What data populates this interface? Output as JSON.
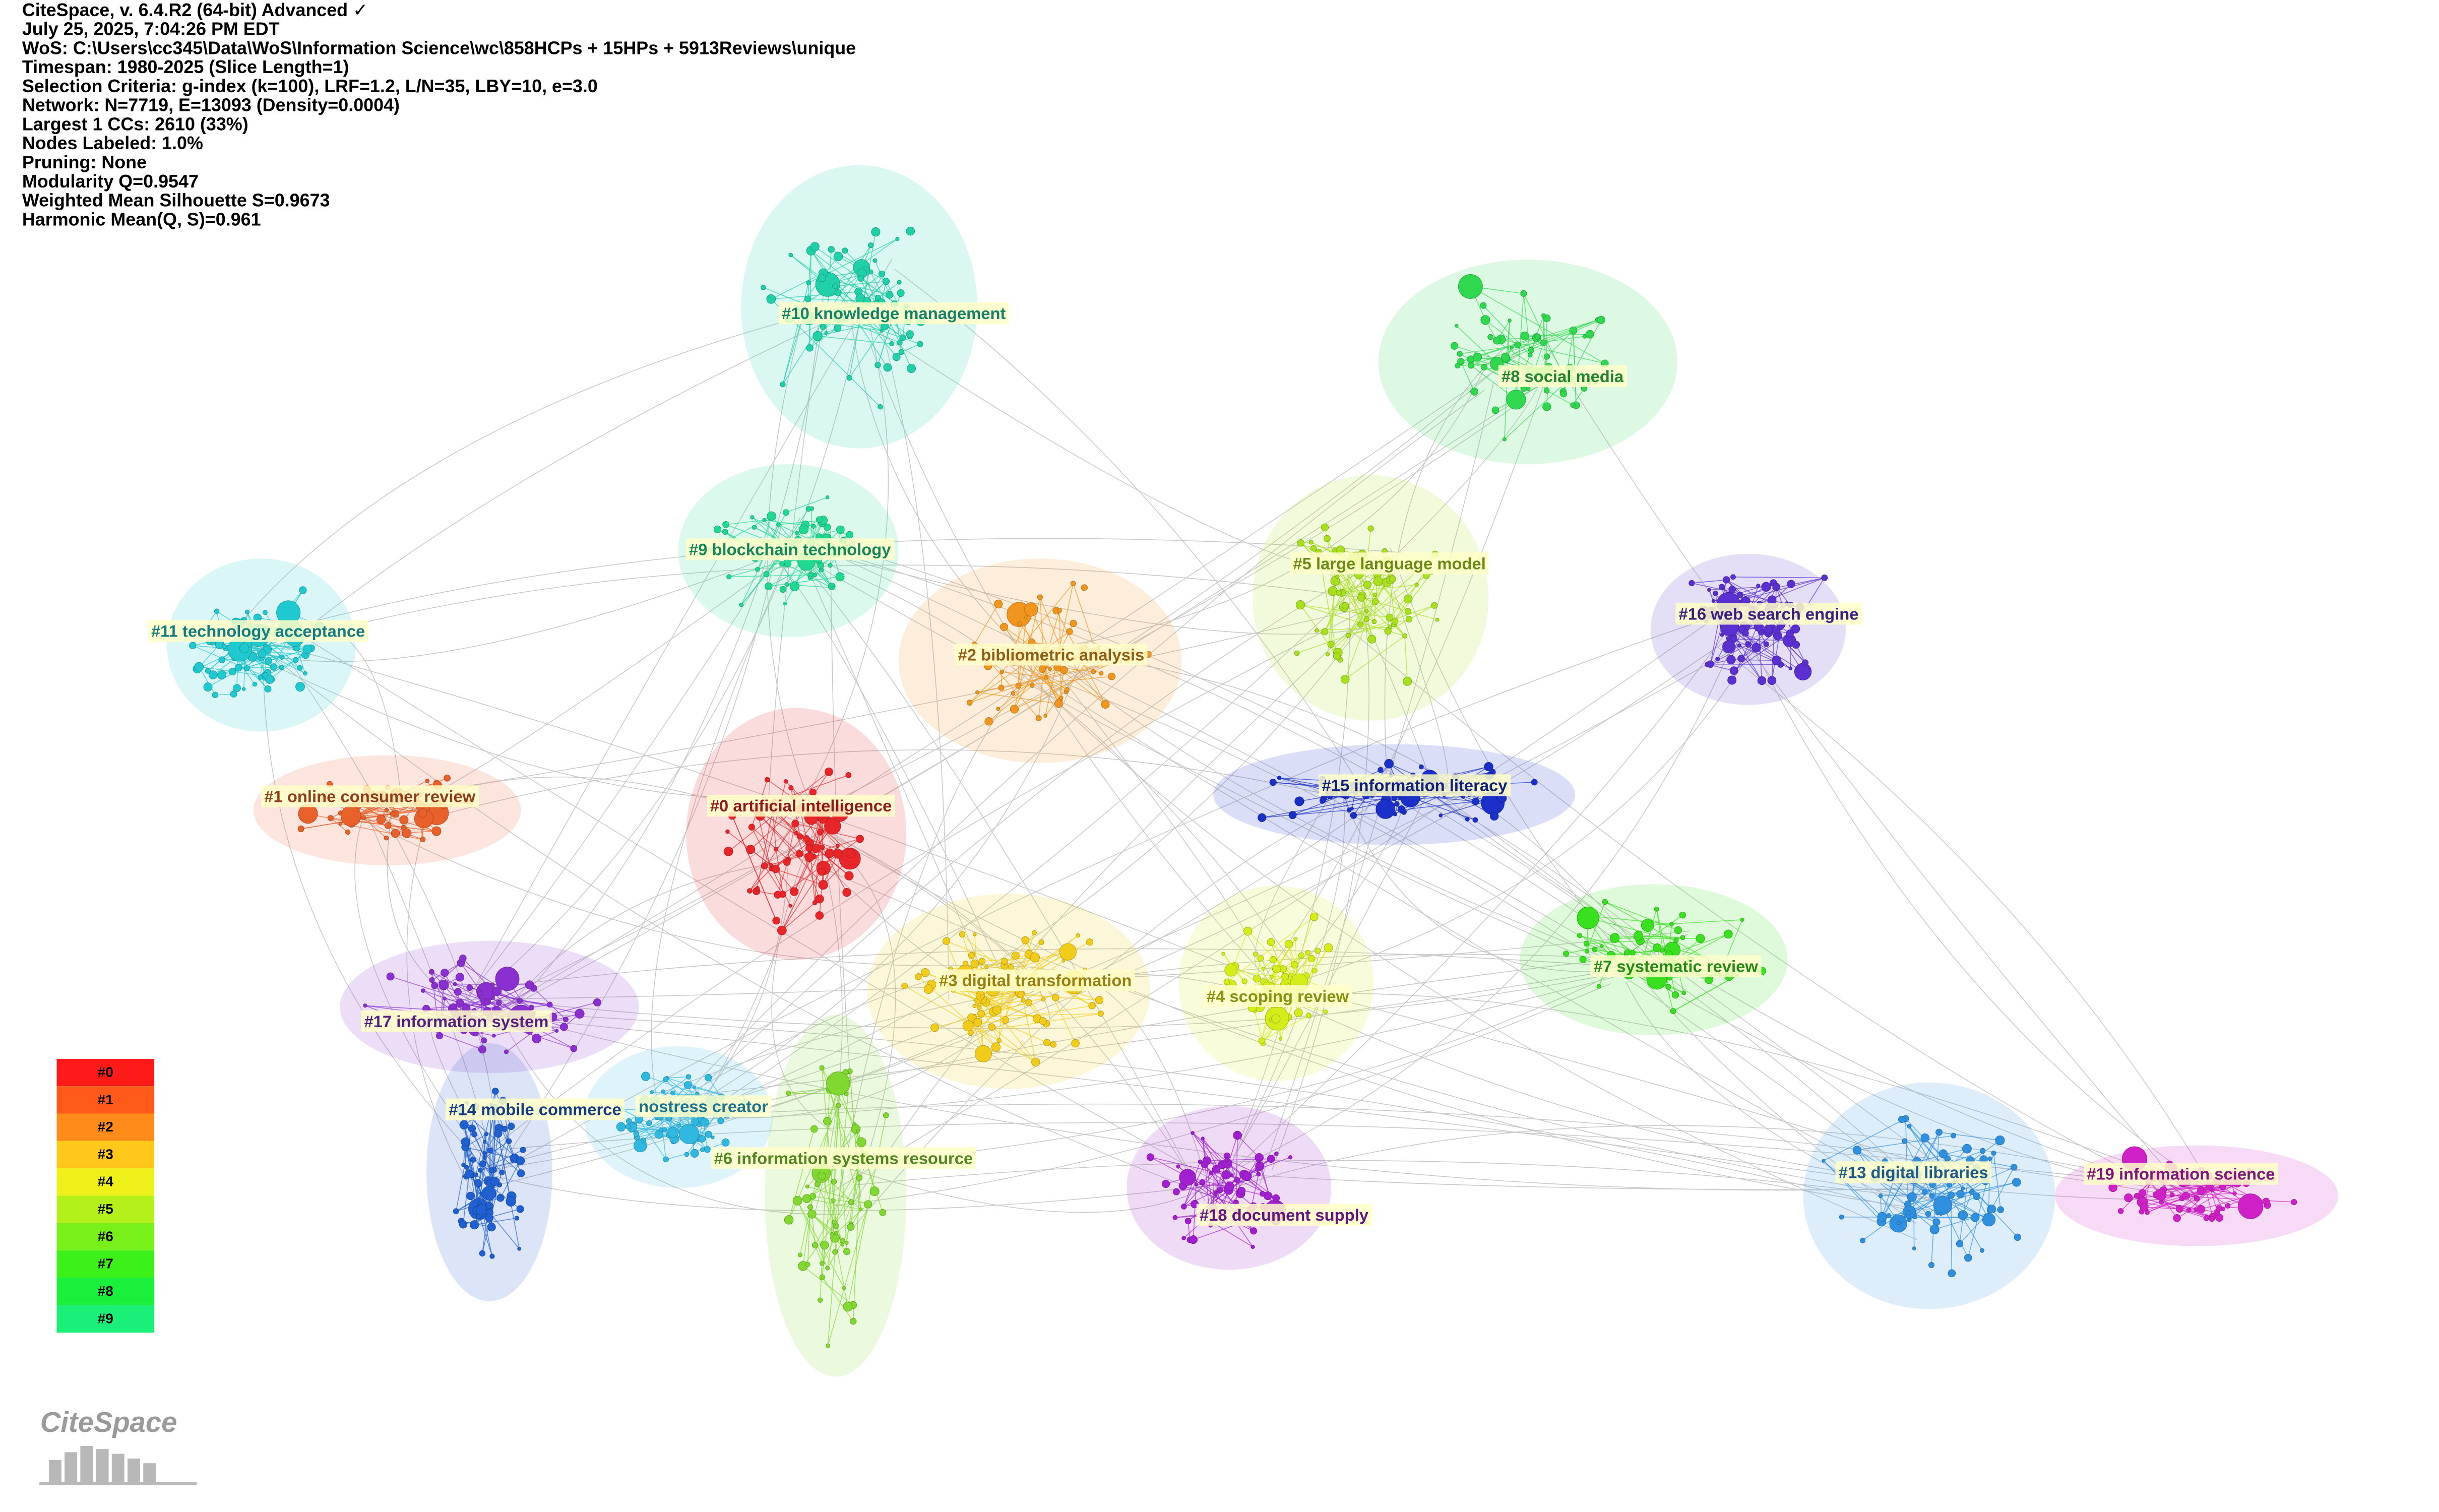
{
  "header": {
    "lines": [
      "CiteSpace, v. 6.4.R2 (64-bit) Advanced ✓",
      "July 25, 2025, 7:04:26 PM EDT",
      "WoS: C:\\Users\\cc345\\Data\\WoS\\Information Science\\wc\\858HCPs + 15HPs + 5913Reviews\\unique",
      "Timespan: 1980-2025 (Slice Length=1)",
      "Selection Criteria: g-index (k=100), LRF=1.2, L/N=35, LBY=10, e=3.0",
      "Network: N=7719, E=13093 (Density=0.0004)",
      "Largest 1 CCs: 2610 (33%)",
      "Nodes Labeled: 1.0%",
      "Pruning: None",
      "Modularity Q=0.9547",
      "Weighted Mean Silhouette S=0.9673",
      "Harmonic Mean(Q, S)=0.961"
    ]
  },
  "clusters": [
    {
      "label": "#0 artificial intelligence",
      "color": "#e8262a"
    },
    {
      "label": "#1 online consumer review",
      "color": "#e8602a"
    },
    {
      "label": "#2 bibliometric analysis",
      "color": "#f0961e"
    },
    {
      "label": "#3 digital transformation",
      "color": "#f2cc1a"
    },
    {
      "label": "#4 scoping review",
      "color": "#d4ec1a"
    },
    {
      "label": "#5 large language model",
      "color": "#a8e020"
    },
    {
      "label": "#6 information systems resource",
      "color": "#80d830"
    },
    {
      "label": "#7 systematic review",
      "color": "#38e020"
    },
    {
      "label": "#8 social media",
      "color": "#30d850"
    },
    {
      "label": "#9 blockchain technology",
      "color": "#20d890"
    },
    {
      "label": "#10 knowledge management",
      "color": "#20d0a8"
    },
    {
      "label": "#11 technology acceptance",
      "color": "#20c8d0"
    },
    {
      "label": "nostress creator",
      "color": "#30b8e0"
    },
    {
      "label": "#13 digital libraries",
      "color": "#3090e0"
    },
    {
      "label": "#14 mobile commerce",
      "color": "#2060d0"
    },
    {
      "label": "#15 information literacy",
      "color": "#1a30c8"
    },
    {
      "label": "#16 web search engine",
      "color": "#5a30d0"
    },
    {
      "label": "#17 information system",
      "color": "#8a30d0"
    },
    {
      "label": "#18 document supply",
      "color": "#a020d0"
    },
    {
      "label": "#19 information science",
      "color": "#d020c8"
    }
  ],
  "legend": [
    {
      "label": "#0",
      "color": "#ff1a1a"
    },
    {
      "label": "#1",
      "color": "#ff5a1a"
    },
    {
      "label": "#2",
      "color": "#ff8c1a"
    },
    {
      "label": "#3",
      "color": "#ffc81a"
    },
    {
      "label": "#4",
      "color": "#eef01a"
    },
    {
      "label": "#5",
      "color": "#b4f01a"
    },
    {
      "label": "#6",
      "color": "#78f01a"
    },
    {
      "label": "#7",
      "color": "#3cf01a"
    },
    {
      "label": "#8",
      "color": "#1af03c"
    },
    {
      "label": "#9",
      "color": "#1af078"
    }
  ],
  "logo": "CiteSpace"
}
